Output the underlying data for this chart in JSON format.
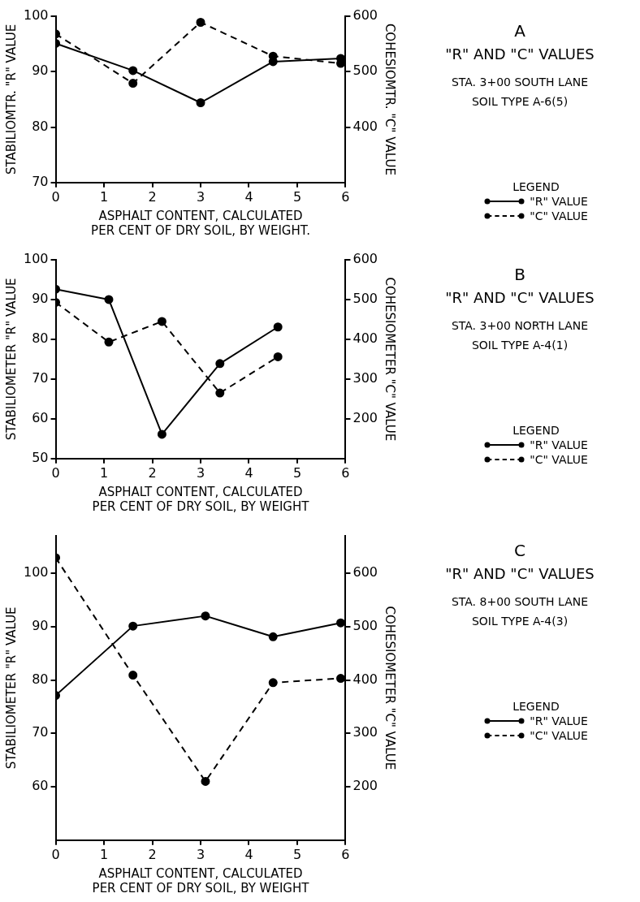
{
  "chart_data": [
    {
      "type": "line",
      "annotations": [
        "A",
        "\"R\" AND \"C\" VALUES",
        "STA. 3+00 SOUTH LANE",
        "SOIL TYPE A-6(5)"
      ],
      "xlabel": "ASPHALT CONTENT, CALCULATED\nPER CENT OF DRY SOIL, BY WEIGHT.",
      "ylabel": "STABILIOMTR. \"R\" VALUE",
      "y2label": "COHESIOMTR. \"C\" VALUE",
      "legend_title": "LEGEND",
      "legend": "right",
      "grid": false,
      "marker": "circle",
      "x": [
        0,
        1.6,
        3,
        4.5,
        5.9
      ],
      "xlim": [
        0,
        6
      ],
      "xticks": [
        0,
        1,
        2,
        3,
        4,
        5,
        6
      ],
      "ylim": [
        70,
        100
      ],
      "yticks": [
        70,
        80,
        90,
        100
      ],
      "y2lim": [
        300,
        600
      ],
      "y2ticks": [
        400,
        500,
        600
      ],
      "series": [
        {
          "name": "\"R\" VALUE",
          "color": "#000000",
          "line_style": "solid",
          "values": [
            95.1,
            90.2,
            84.4,
            91.8,
            92.4
          ]
        },
        {
          "name": "\"C\" VALUE",
          "color": "#000000",
          "line_style": "dashed",
          "axis": "y2",
          "values": [
            568,
            479,
            589,
            528,
            515
          ]
        }
      ]
    },
    {
      "type": "line",
      "annotations": [
        "B",
        "\"R\" AND \"C\" VALUES",
        "STA. 3+00 NORTH LANE",
        "SOIL TYPE A-4(1)"
      ],
      "xlabel": "ASPHALT CONTENT, CALCULATED\nPER CENT OF DRY SOIL, BY WEIGHT",
      "ylabel": "STABILIOMETER \"R\" VALUE",
      "y2label": "COHESIOMETER \"C\" VALUE",
      "legend_title": "LEGEND",
      "legend": "right",
      "grid": false,
      "marker": "circle",
      "x": [
        0,
        1.1,
        2.2,
        3.4,
        4.6
      ],
      "xlim": [
        0,
        6
      ],
      "xticks": [
        0,
        1,
        2,
        3,
        4,
        5,
        6
      ],
      "ylim": [
        50,
        100
      ],
      "yticks": [
        50,
        60,
        70,
        80,
        90,
        100
      ],
      "y2lim": [
        100,
        600
      ],
      "y2ticks": [
        200,
        300,
        400,
        500,
        600
      ],
      "series": [
        {
          "name": "\"R\" VALUE",
          "color": "#000000",
          "line_style": "solid",
          "values": [
            92.6,
            90,
            56.1,
            73.9,
            83.1
          ]
        },
        {
          "name": "\"C\" VALUE",
          "color": "#000000",
          "line_style": "dashed",
          "axis": "y2",
          "values": [
            493,
            393,
            445,
            265,
            356
          ]
        }
      ]
    },
    {
      "type": "line",
      "annotations": [
        "C",
        "\"R\" AND \"C\" VALUES",
        "STA. 8+00 SOUTH LANE",
        "SOIL TYPE A-4(3)"
      ],
      "xlabel": "ASPHALT CONTENT, CALCULATED\nPER CENT OF DRY SOIL, BY WEIGHT",
      "ylabel": "STABILIOMETER \"R\" VALUE",
      "y2label": "COHESIOMETER \"C\" VALUE",
      "legend_title": "LEGEND",
      "legend": "right",
      "grid": false,
      "marker": "circle",
      "x": [
        0,
        1.6,
        3.1,
        4.5,
        5.9
      ],
      "xlim": [
        0,
        6
      ],
      "xticks": [
        0,
        1,
        2,
        3,
        4,
        5,
        6
      ],
      "ylim": [
        50,
        107
      ],
      "yticks": [
        60,
        70,
        80,
        90,
        100
      ],
      "y2lim": [
        100,
        670
      ],
      "y2ticks": [
        200,
        300,
        400,
        500,
        600
      ],
      "series": [
        {
          "name": "\"R\" VALUE",
          "color": "#000000",
          "line_style": "solid",
          "values": [
            77.1,
            90.1,
            92,
            88.1,
            90.7
          ]
        },
        {
          "name": "\"C\" VALUE",
          "color": "#000000",
          "line_style": "dashed",
          "axis": "y2",
          "values": [
            629,
            409,
            210,
            395,
            403
          ]
        }
      ]
    }
  ]
}
